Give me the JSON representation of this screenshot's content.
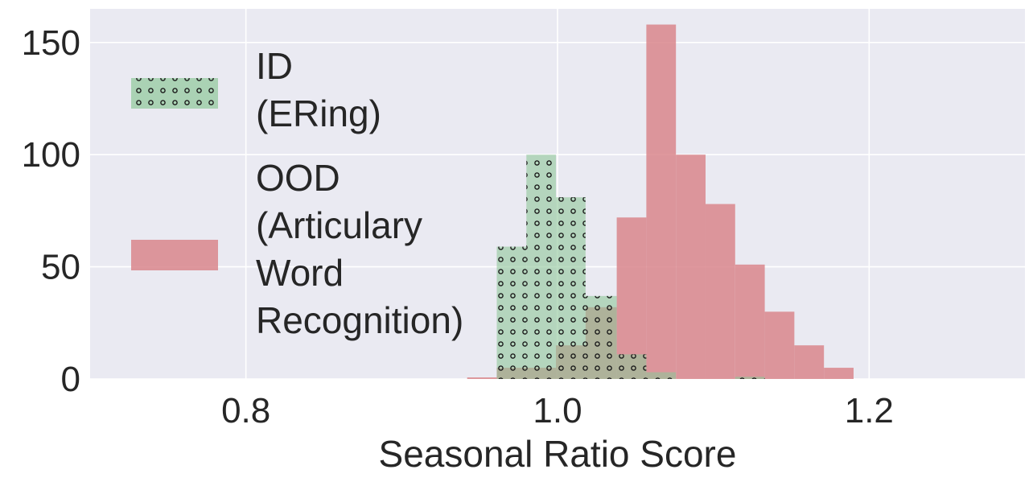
{
  "chart_data": {
    "type": "histogram",
    "xlabel": "Seasonal Ratio Score",
    "ylabel": "",
    "xlim": [
      0.7,
      1.3
    ],
    "ylim": [
      0,
      165
    ],
    "xticks": [
      {
        "value": 0.8,
        "label": "0.8"
      },
      {
        "value": 1.0,
        "label": "1.0"
      },
      {
        "value": 1.2,
        "label": "1.2"
      }
    ],
    "yticks": [
      {
        "value": 0,
        "label": "0"
      },
      {
        "value": 50,
        "label": "50"
      },
      {
        "value": 100,
        "label": "100"
      },
      {
        "value": 150,
        "label": "150"
      }
    ],
    "grid": true,
    "legend_position": "top-left",
    "series": [
      {
        "name": "ID\n(ERing)",
        "color": "#8fc79a",
        "hatch": "o",
        "bins": [
          {
            "x0": 0.961,
            "x1": 0.98,
            "count": 59
          },
          {
            "x0": 0.98,
            "x1": 0.999,
            "count": 100
          },
          {
            "x0": 0.999,
            "x1": 1.018,
            "count": 81
          },
          {
            "x0": 1.018,
            "x1": 1.038,
            "count": 37
          },
          {
            "x0": 1.038,
            "x1": 1.057,
            "count": 11
          },
          {
            "x0": 1.057,
            "x1": 1.076,
            "count": 3
          },
          {
            "x0": 1.076,
            "x1": 1.095,
            "count": 0
          },
          {
            "x0": 1.095,
            "x1": 1.114,
            "count": 0
          },
          {
            "x0": 1.114,
            "x1": 1.133,
            "count": 1
          }
        ]
      },
      {
        "name": "OOD\n(Articulary\nWord\nRecognition)",
        "color": "#d9868c",
        "hatch": "",
        "bins": [
          {
            "x0": 0.942,
            "x1": 0.961,
            "count": 0.7
          },
          {
            "x0": 0.961,
            "x1": 0.98,
            "count": 5
          },
          {
            "x0": 0.98,
            "x1": 0.999,
            "count": 5
          },
          {
            "x0": 0.999,
            "x1": 1.018,
            "count": 15
          },
          {
            "x0": 1.018,
            "x1": 1.038,
            "count": 32
          },
          {
            "x0": 1.038,
            "x1": 1.057,
            "count": 72
          },
          {
            "x0": 1.057,
            "x1": 1.076,
            "count": 158
          },
          {
            "x0": 1.076,
            "x1": 1.095,
            "count": 100
          },
          {
            "x0": 1.095,
            "x1": 1.114,
            "count": 78
          },
          {
            "x0": 1.114,
            "x1": 1.133,
            "count": 51
          },
          {
            "x0": 1.133,
            "x1": 1.152,
            "count": 30
          },
          {
            "x0": 1.152,
            "x1": 1.171,
            "count": 15
          },
          {
            "x0": 1.171,
            "x1": 1.19,
            "count": 5
          }
        ]
      }
    ],
    "background_color": "#eaeaf2",
    "grid_color": "#ffffff"
  }
}
